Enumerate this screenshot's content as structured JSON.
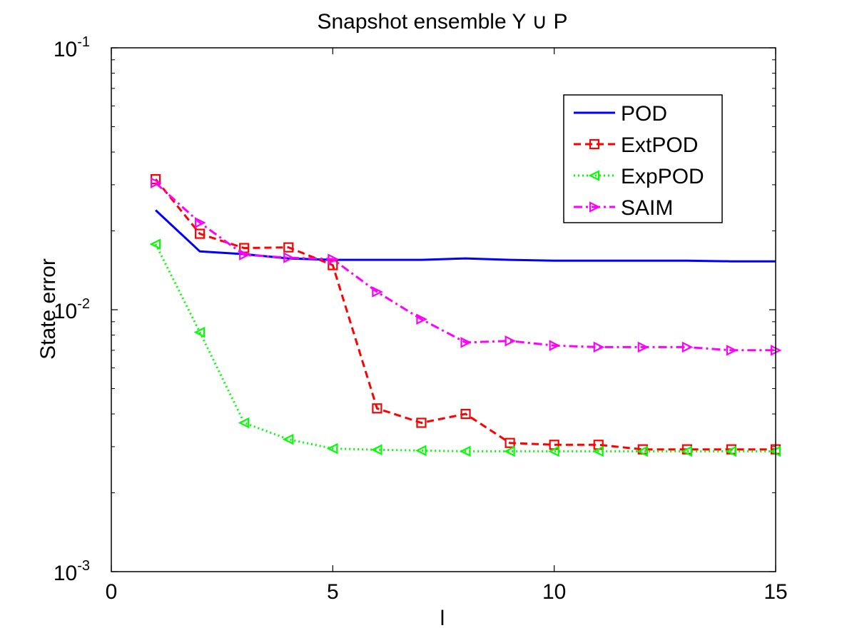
{
  "chart_data": {
    "type": "line",
    "title": "Snapshot ensemble Y ∪ P",
    "xlabel": "l",
    "ylabel": "State error",
    "xlim": [
      0,
      15
    ],
    "ylim": [
      0.001,
      0.1
    ],
    "yscale": "log",
    "x_ticks": [
      0,
      5,
      10,
      15
    ],
    "x_tick_labels": [
      "0",
      "5",
      "10",
      "15"
    ],
    "y_ticks": [
      0.001,
      0.01,
      0.1
    ],
    "y_tick_labels": [
      {
        "base": "10",
        "exp": "-3"
      },
      {
        "base": "10",
        "exp": "-2"
      },
      {
        "base": "10",
        "exp": "-1"
      }
    ],
    "legend_position": "top-right",
    "series": [
      {
        "name": "POD",
        "color": "#0000ff",
        "dash": "solid",
        "marker": "none",
        "x": [
          1,
          2,
          3,
          4,
          5,
          6,
          7,
          8,
          9,
          10,
          11,
          12,
          13,
          14,
          15
        ],
        "y": [
          0.024,
          0.0167,
          0.0163,
          0.0157,
          0.0155,
          0.0155,
          0.0155,
          0.0157,
          0.0155,
          0.0154,
          0.0154,
          0.0154,
          0.0154,
          0.0153,
          0.0153
        ]
      },
      {
        "name": "ExtPOD",
        "color": "#ff0000",
        "dash": "dashed",
        "marker": "square",
        "x": [
          1,
          2,
          3,
          4,
          5,
          6,
          7,
          8,
          9,
          10,
          11,
          12,
          13,
          14,
          15
        ],
        "y": [
          0.0315,
          0.0195,
          0.0172,
          0.0173,
          0.0148,
          0.0042,
          0.0037,
          0.004,
          0.0031,
          0.00305,
          0.00305,
          0.00293,
          0.00293,
          0.00293,
          0.00293
        ]
      },
      {
        "name": "ExpPOD",
        "color": "#00ff00",
        "dash": "dotted",
        "marker": "triangle-left",
        "x": [
          1,
          2,
          3,
          4,
          5,
          6,
          7,
          8,
          9,
          10,
          11,
          12,
          13,
          14,
          15
        ],
        "y": [
          0.0178,
          0.0082,
          0.0037,
          0.0032,
          0.00295,
          0.00292,
          0.0029,
          0.00288,
          0.00288,
          0.00288,
          0.00288,
          0.00288,
          0.00288,
          0.00288,
          0.00288
        ]
      },
      {
        "name": "SAIM",
        "color": "#ff00ff",
        "dash": "dashdot",
        "marker": "triangle-right",
        "x": [
          1,
          2,
          3,
          4,
          5,
          6,
          7,
          8,
          9,
          10,
          11,
          12,
          13,
          14,
          15
        ],
        "y": [
          0.0305,
          0.0215,
          0.0162,
          0.0158,
          0.0156,
          0.0117,
          0.0092,
          0.0075,
          0.0076,
          0.0073,
          0.0072,
          0.0072,
          0.0072,
          0.007,
          0.007
        ]
      }
    ]
  }
}
